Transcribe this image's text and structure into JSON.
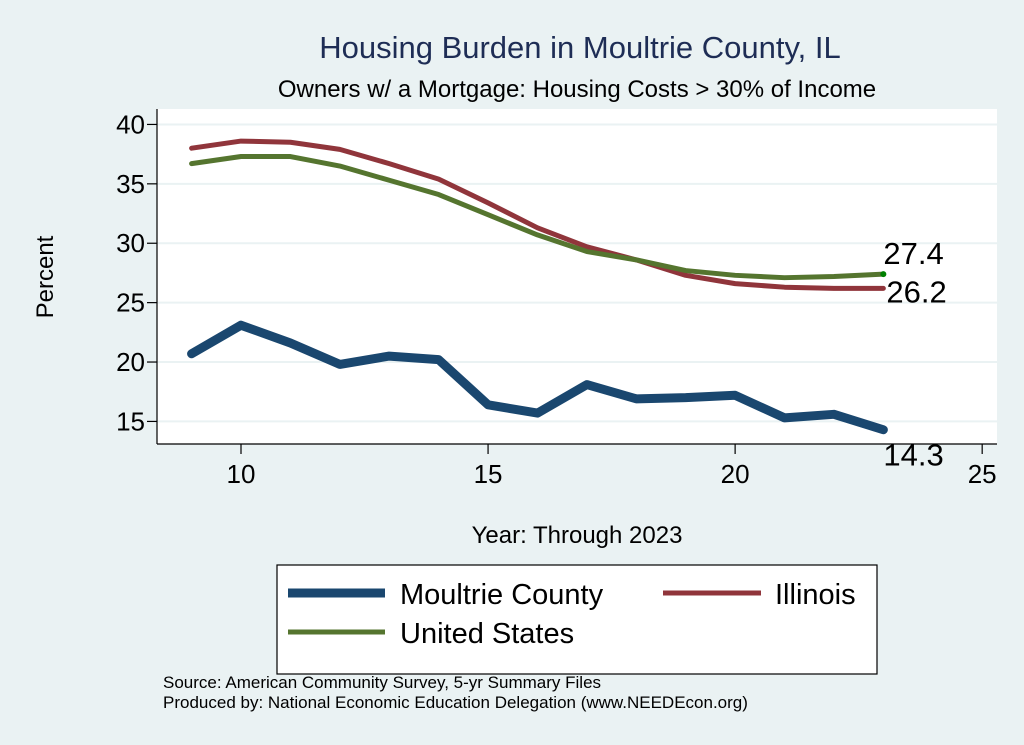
{
  "chart_data": {
    "type": "line",
    "title": "Housing Burden in Moultrie County, IL",
    "subtitle": "Owners w/ a Mortgage: Housing Costs > 30% of Income",
    "xlabel": "Year: Through 2023",
    "ylabel": "Percent",
    "xlim": [
      8.3,
      25.3
    ],
    "ylim": [
      13.1,
      41.3
    ],
    "xticks": [
      10,
      15,
      20,
      25
    ],
    "yticks": [
      15,
      20,
      25,
      30,
      35,
      40
    ],
    "grid": true,
    "x": [
      9,
      10,
      11,
      12,
      13,
      14,
      15,
      16,
      17,
      18,
      19,
      20,
      21,
      22,
      23
    ],
    "series": [
      {
        "name": "Moultrie County",
        "color": "#1A476F",
        "values": [
          20.7,
          23.1,
          21.6,
          19.8,
          20.5,
          20.2,
          16.4,
          15.7,
          18.1,
          16.9,
          17.0,
          17.2,
          15.3,
          15.6,
          14.3
        ],
        "end_label": "14.3"
      },
      {
        "name": "Illinois",
        "color": "#90353B",
        "values": [
          38.0,
          38.6,
          38.5,
          37.9,
          36.7,
          35.4,
          33.4,
          31.3,
          29.7,
          28.6,
          27.3,
          26.6,
          26.3,
          26.2,
          26.2
        ],
        "end_label": "26.2"
      },
      {
        "name": "United States",
        "color": "#55752F",
        "values": [
          36.7,
          37.3,
          37.3,
          36.5,
          35.3,
          34.1,
          32.4,
          30.7,
          29.3,
          28.6,
          27.7,
          27.3,
          27.1,
          27.2,
          27.4
        ],
        "end_label": "27.4"
      }
    ],
    "legend": {
      "position": "bottom",
      "entries": [
        "Moultrie County",
        "Illinois",
        "United States"
      ]
    },
    "notes": [
      "Source: American Community Survey, 5-yr Summary Files",
      "Produced by: National Economic Education Delegation (www.NEEDEcon.org)"
    ]
  }
}
